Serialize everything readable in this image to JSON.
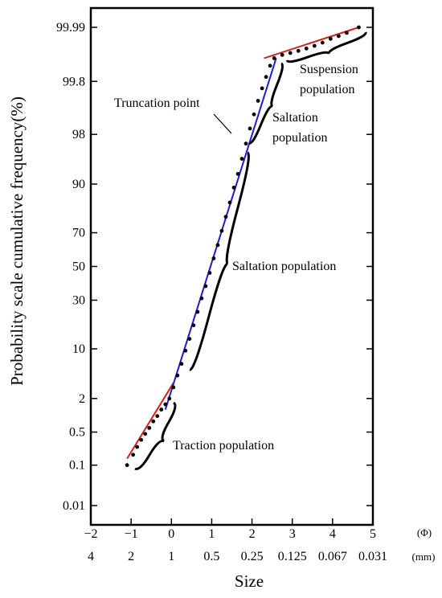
{
  "chart_data": {
    "type": "line",
    "title": "",
    "xlabel": "Size",
    "ylabel": "Probability scale cumulative frequency(%)",
    "x_unit_phi": "(Φ)",
    "x_unit_mm": "(mm)",
    "x_scale": "phi",
    "y_scale": "probability",
    "xlim": [
      -2,
      5
    ],
    "ylim": [
      0.01,
      99.99
    ],
    "x_ticks_phi": [
      -2,
      -1,
      0,
      1,
      2,
      3,
      4,
      5
    ],
    "x_tick_labels_phi": [
      "−2",
      "−1",
      "0",
      "1",
      "2",
      "3",
      "4",
      "5"
    ],
    "x_tick_labels_mm": [
      "4",
      "2",
      "1",
      "0.5",
      "0.25",
      "0.125",
      "0.067",
      "0.031"
    ],
    "y_ticks": [
      0.01,
      0.1,
      0.5,
      2,
      10,
      30,
      50,
      70,
      90,
      98,
      99.8,
      99.99
    ],
    "y_tick_labels": [
      "0.01",
      "0.1",
      "0.5",
      "2",
      "10",
      "30",
      "50",
      "70",
      "90",
      "98",
      "99.8",
      "99.99"
    ],
    "series": [
      {
        "type": "scatter",
        "color": "#000000",
        "x": [
          -1.1,
          -0.95,
          -0.85,
          -0.75,
          -0.65,
          -0.55,
          -0.45,
          -0.35,
          -0.25,
          -0.15,
          -0.05,
          0.05,
          0.15,
          0.25,
          0.35,
          0.45,
          0.55,
          0.65,
          0.75,
          0.85,
          0.95,
          1.05,
          1.15,
          1.25,
          1.35,
          1.45,
          1.55,
          1.65,
          1.75,
          1.85,
          1.95,
          2.05,
          2.15,
          2.25,
          2.35,
          2.45,
          2.55,
          2.75,
          2.95,
          3.15,
          3.35,
          3.55,
          3.75,
          3.95,
          4.15,
          4.35,
          4.65
        ],
        "y": [
          0.1,
          0.17,
          0.25,
          0.35,
          0.46,
          0.6,
          0.8,
          1.0,
          1.3,
          1.6,
          2.0,
          3.0,
          4.5,
          6.5,
          9.5,
          13,
          18,
          24,
          31,
          38,
          46,
          55,
          63,
          71,
          78,
          84,
          89,
          92.5,
          95.3,
          97.2,
          98.4,
          99.1,
          99.5,
          99.72,
          99.84,
          99.91,
          99.94,
          99.95,
          99.955,
          99.96,
          99.965,
          99.97,
          99.975,
          99.98,
          99.983,
          99.986,
          99.99
        ]
      },
      {
        "type": "line",
        "color": "#d4201b",
        "x": [
          -1.1,
          0.05
        ],
        "y": [
          0.14,
          3.5
        ]
      },
      {
        "type": "line",
        "color": "#1c1cd0",
        "x": [
          -0.15,
          2.6
        ],
        "y": [
          1.3,
          99.94
        ]
      },
      {
        "type": "line",
        "color": "#d4201b",
        "x": [
          2.3,
          4.65
        ],
        "y": [
          99.94,
          99.99
        ]
      }
    ],
    "annotations": [
      {
        "text": "Truncation point"
      },
      {
        "text": "Saltation"
      },
      {
        "text": "population"
      },
      {
        "text": "Suspension"
      },
      {
        "text": "population"
      },
      {
        "text": "Saltation population"
      },
      {
        "text": "Traction population"
      }
    ],
    "grid": false,
    "legend": "none"
  }
}
